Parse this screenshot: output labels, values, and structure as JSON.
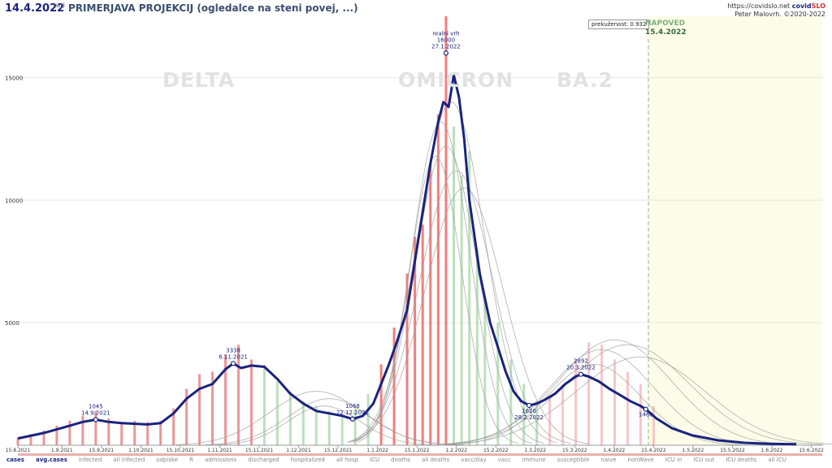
{
  "header": {
    "date": "14.4.2022",
    "date_tag": "(wt)",
    "title": "PRIMERJAVA PROJEKCIJ (ogledalce na steni povej, ...)",
    "site": "https://covidslo.net",
    "brand_a": "covid",
    "brand_b": "SLO",
    "author": "Peter Malovrh, ©2020-2022"
  },
  "waves": [
    "DELTA",
    "OMICRON",
    "BA.2"
  ],
  "forecast": {
    "fit_label": "prekuženost: 0.932",
    "label": "NAPOVED",
    "date": "15.4.2022"
  },
  "legend": [
    "cases",
    "avg.cases",
    "infected",
    "all infected",
    "odpiske",
    "R",
    "admissions",
    "discharged",
    "hospitalized",
    "all hosp",
    "ICU",
    "deaths",
    "all deaths",
    "vacc/day",
    "vacc",
    "immune",
    "susceptible",
    "naive",
    "nonWave",
    "ICU in",
    "ICU out",
    "ICU deaths",
    "all ICU"
  ],
  "colors": {
    "avg": "#1a237e",
    "delta_bars": "#e57373",
    "omicron_bars": "#ef5350",
    "green_bars": "#a5d6a7",
    "projections": "#9e9e9e",
    "forecast_bg": "#fcfce8"
  },
  "chart_data": {
    "type": "bar",
    "xlabel": "",
    "ylabel": "",
    "ylim": [
      0,
      17500
    ],
    "yticks": [
      0,
      5000,
      10000,
      15000
    ],
    "xticks": [
      "15.8.2021",
      "1.9.2021",
      "15.9.2021",
      "1.10.2021",
      "15.10.2021",
      "1.11.2021",
      "15.11.2021",
      "1.12.2021",
      "15.12.2021",
      "1.1.2022",
      "15.1.2022",
      "1.2.2022",
      "15.2.2022",
      "1.3.2022",
      "15.3.2022",
      "1.4.2022",
      "15.4.2022",
      "1.5.2022",
      "15.5.2022",
      "1.6.2022",
      "15.6.2022"
    ],
    "annotations": [
      {
        "value": "1045",
        "date": "14.9.2021",
        "day": 30,
        "y": 1045
      },
      {
        "value": "3338",
        "date": "6.11.2021",
        "day": 83,
        "y": 3338
      },
      {
        "value": "1068",
        "date": "22.12.2021",
        "day": 129,
        "y": 1068
      },
      {
        "label": "realni vrh",
        "value": "16000",
        "date": "27.1.2022",
        "day": 165,
        "y": 16000
      },
      {
        "value": "1626",
        "date": "28.2.2022",
        "day": 197,
        "y": 1626
      },
      {
        "value": "2892",
        "date": "20.3.2022",
        "day": 217,
        "y": 2892
      },
      {
        "value": "1468",
        "date": "",
        "day": 242,
        "y": 1468
      }
    ],
    "series": [
      {
        "name": "avg.cases",
        "x_days": [
          0,
          10,
          20,
          25,
          30,
          35,
          40,
          50,
          55,
          60,
          65,
          70,
          75,
          80,
          83,
          86,
          90,
          95,
          100,
          105,
          110,
          115,
          120,
          125,
          129,
          133,
          137,
          140,
          143,
          146,
          150,
          153,
          156,
          159,
          162,
          164,
          166,
          168,
          170,
          172,
          174,
          176,
          178,
          180,
          182,
          185,
          188,
          191,
          194,
          197,
          200,
          203,
          207,
          211,
          215,
          217,
          220,
          224,
          228,
          232,
          236,
          240,
          242,
          246,
          252,
          260,
          270,
          280,
          290,
          300
        ],
        "values": [
          280,
          500,
          800,
          950,
          1045,
          950,
          900,
          850,
          900,
          1300,
          1900,
          2300,
          2500,
          3100,
          3338,
          3150,
          3250,
          3200,
          2700,
          2100,
          1700,
          1400,
          1300,
          1200,
          1068,
          1200,
          1700,
          2500,
          3300,
          4200,
          5500,
          7500,
          9500,
          11500,
          13200,
          14000,
          13800,
          15100,
          14200,
          12500,
          10000,
          8500,
          7000,
          6000,
          5000,
          4000,
          3000,
          2200,
          1800,
          1626,
          1700,
          1850,
          2100,
          2500,
          2800,
          2892,
          2800,
          2600,
          2300,
          2050,
          1800,
          1600,
          1468,
          1100,
          700,
          400,
          200,
          100,
          60,
          40
        ]
      }
    ],
    "bars_sampled": {
      "x_days": [
        0,
        5,
        10,
        15,
        20,
        25,
        30,
        35,
        40,
        45,
        50,
        55,
        60,
        65,
        70,
        75,
        80,
        85,
        90,
        95,
        100,
        105,
        110,
        115,
        120,
        125,
        130,
        135,
        140,
        145,
        150,
        153,
        156,
        159,
        162,
        165,
        168,
        171,
        174,
        177,
        180,
        185,
        190,
        195,
        200,
        205,
        210,
        215,
        220,
        225,
        230,
        235,
        240,
        245
      ],
      "values": [
        300,
        450,
        600,
        800,
        1000,
        1200,
        1400,
        1100,
        900,
        1000,
        950,
        1000,
        1500,
        2300,
        2900,
        3000,
        3700,
        4100,
        3500,
        3300,
        2600,
        2200,
        1800,
        1600,
        1400,
        1200,
        1500,
        2100,
        3300,
        4800,
        7000,
        8500,
        9000,
        11500,
        13500,
        17500,
        13000,
        11000,
        12000,
        8000,
        6000,
        5000,
        3500,
        2500,
        1800,
        2000,
        2500,
        3500,
        4200,
        4100,
        3500,
        3000,
        2500,
        1600
      ]
    },
    "forecast_start_day": 243
  }
}
